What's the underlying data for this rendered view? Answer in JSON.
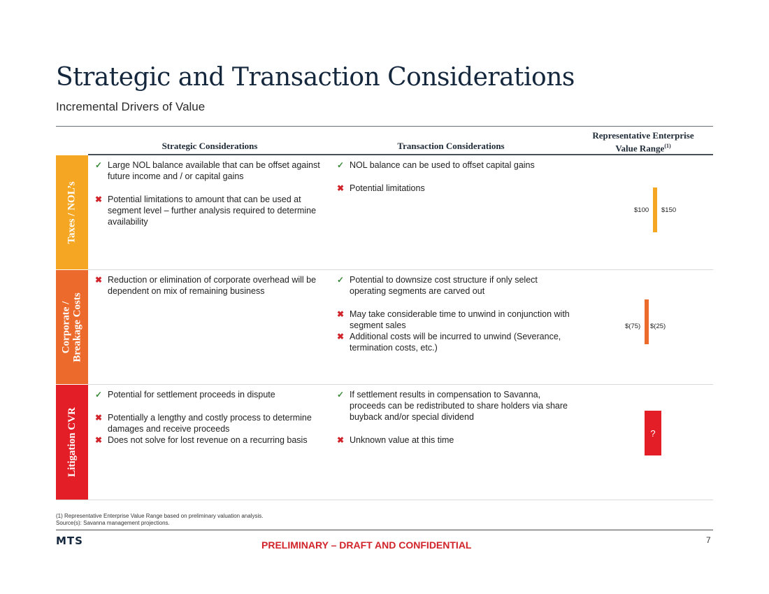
{
  "header": {
    "title": "Strategic and Transaction Considerations",
    "subtitle": "Incremental Drivers of Value"
  },
  "columns": {
    "strategic": "Strategic Considerations",
    "transaction": "Transaction Considerations",
    "ev_line1": "Representative Enterprise",
    "ev_line2": "Value Range",
    "ev_note": "(1)"
  },
  "rows": [
    {
      "label": "Taxes / NOL’s",
      "color": "#f5a623",
      "strategic": [
        {
          "mark": "check",
          "text": "Large NOL balance available that can be offset against future income and / or capital gains"
        },
        {
          "mark": "cross",
          "text": "Potential limitations to amount that can be used at segment level – further analysis required to determine availability"
        }
      ],
      "transaction": [
        {
          "mark": "check",
          "text": "NOL balance can be used to offset capital gains"
        },
        {
          "mark": "cross",
          "text": "Potential limitations"
        }
      ],
      "range_low": "$100",
      "range_high": "$150"
    },
    {
      "label_line1": "Corporate /",
      "label_line2": "Breakage Costs",
      "color": "#ec6a2c",
      "strategic": [
        {
          "mark": "cross",
          "text": "Reduction or elimination of corporate overhead will be dependent on mix of remaining business"
        }
      ],
      "transaction": [
        {
          "mark": "check",
          "text": "Potential to downsize cost structure if only select operating segments are carved out"
        },
        {
          "mark": "cross",
          "text": "May take considerable time to unwind in conjunction with segment sales"
        },
        {
          "mark": "cross",
          "text": "Additional costs will be incurred to unwind (Severance, termination costs, etc.)"
        }
      ],
      "range_low": "$(75)",
      "range_high": "$(25)"
    },
    {
      "label": "Litigation CVR",
      "color": "#e31e26",
      "strategic": [
        {
          "mark": "check",
          "text": "Potential for settlement proceeds in dispute"
        },
        {
          "mark": "cross",
          "text": "Potentially a lengthy and costly process to determine damages and receive proceeds"
        },
        {
          "mark": "cross",
          "text": "Does not solve for lost revenue on a recurring basis"
        }
      ],
      "transaction": [
        {
          "mark": "check",
          "text": "If settlement results in compensation to Savanna, proceeds can be redistributed to share holders via share buyback and/or special dividend"
        },
        {
          "mark": "cross",
          "text": "Unknown value at this time"
        }
      ],
      "range_unknown": "?"
    }
  ],
  "footnotes": {
    "note1": "(1)     Representative Enterprise Value Range based on preliminary valuation analysis.",
    "source": "Source(s): Savanna management projections."
  },
  "footer": {
    "logo": "MTS",
    "confidential": "PRELIMINARY – DRAFT AND CONFIDENTIAL",
    "page_number": "7"
  }
}
